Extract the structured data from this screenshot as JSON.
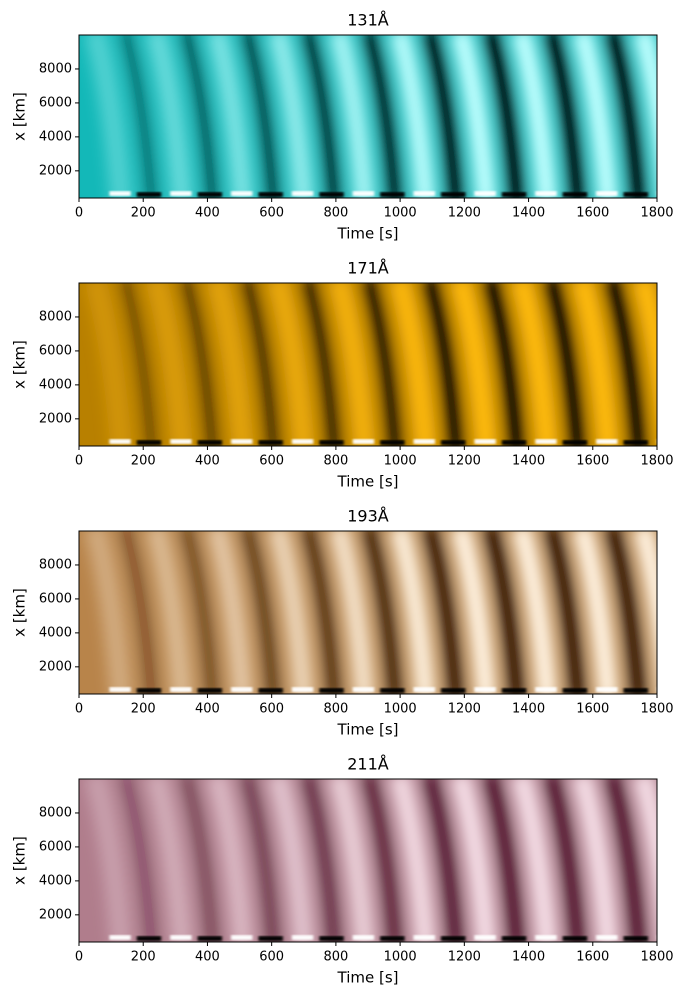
{
  "chart_data": [
    {
      "type": "heatmap",
      "title": "131Å",
      "xlabel": "Time [s]",
      "ylabel": "x [km]",
      "xlim": [
        0,
        1800
      ],
      "ylim": [
        400,
        10000
      ],
      "xticks": [
        0,
        200,
        400,
        600,
        800,
        1000,
        1200,
        1400,
        1600,
        1800
      ],
      "yticks": [
        2000,
        4000,
        6000,
        8000
      ],
      "grid": false,
      "colors": [
        "#000000",
        "#13b8b8",
        "#bfffff"
      ]
    },
    {
      "type": "heatmap",
      "title": "171Å",
      "xlabel": "Time [s]",
      "ylabel": "x [km]",
      "xlim": [
        0,
        1800
      ],
      "ylim": [
        400,
        10000
      ],
      "xticks": [
        0,
        200,
        400,
        600,
        800,
        1000,
        1200,
        1400,
        1600,
        1800
      ],
      "yticks": [
        2000,
        4000,
        6000,
        8000
      ],
      "grid": false,
      "colors": [
        "#000000",
        "#b88000",
        "#ffbb11"
      ]
    },
    {
      "type": "heatmap",
      "title": "193Å",
      "xlabel": "Time [s]",
      "ylabel": "x [km]",
      "xlim": [
        0,
        1800
      ],
      "ylim": [
        400,
        10000
      ],
      "xticks": [
        0,
        200,
        400,
        600,
        800,
        1000,
        1200,
        1400,
        1600,
        1800
      ],
      "yticks": [
        2000,
        4000,
        6000,
        8000
      ],
      "grid": false,
      "colors": [
        "#2a1000",
        "#b8844a",
        "#fff2e0"
      ]
    },
    {
      "type": "heatmap",
      "title": "211Å",
      "xlabel": "Time [s]",
      "ylabel": "x [km]",
      "xlim": [
        0,
        1800
      ],
      "ylim": [
        400,
        10000
      ],
      "xticks": [
        0,
        200,
        400,
        600,
        800,
        1000,
        1200,
        1400,
        1600,
        1800
      ],
      "yticks": [
        2000,
        4000,
        6000,
        8000
      ],
      "grid": false,
      "colors": [
        "#4a1028",
        "#b07d8c",
        "#f4dde5"
      ]
    }
  ]
}
